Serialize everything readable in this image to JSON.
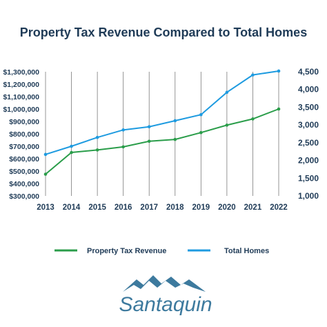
{
  "chart_data": {
    "type": "line",
    "title": "Property Tax Revenue Compared to Total Homes",
    "categories": [
      "2013",
      "2014",
      "2015",
      "2016",
      "2017",
      "2018",
      "2019",
      "2020",
      "2021",
      "2022"
    ],
    "series": [
      {
        "name": "Property Tax Revenue",
        "axis": "left",
        "color": "#2a9d4a",
        "values": [
          475000,
          650000,
          670000,
          695000,
          740000,
          755000,
          810000,
          870000,
          920000,
          1000000
        ]
      },
      {
        "name": "Total Homes",
        "axis": "right",
        "color": "#1e9be0",
        "values": [
          2170,
          2400,
          2650,
          2860,
          2950,
          3120,
          3290,
          3920,
          4410,
          4520
        ]
      }
    ],
    "left_axis": {
      "min": 300000,
      "max": 1300000,
      "step": 100000,
      "tick_labels": [
        "$300,000",
        "$400,000",
        "$500,000",
        "$600,000",
        "$700,000",
        "$800,000",
        "$900,000",
        "$1,000,000",
        "$1,100,000",
        "$1,200,000",
        "$1,300,000"
      ]
    },
    "right_axis": {
      "min": 1000,
      "max": 4500,
      "step": 500,
      "tick_labels": [
        "1,000",
        "1,500",
        "2,000",
        "2,500",
        "3,000",
        "3,500",
        "4,000",
        "4,500"
      ]
    },
    "grid": {
      "vertical": true,
      "horizontal": false
    },
    "legend_position": "bottom"
  },
  "logo": {
    "text": "Santaquin"
  },
  "colors": {
    "title": "#1f3b57",
    "axis_text": "#1f3b57",
    "grid": "#7a7a7a"
  }
}
